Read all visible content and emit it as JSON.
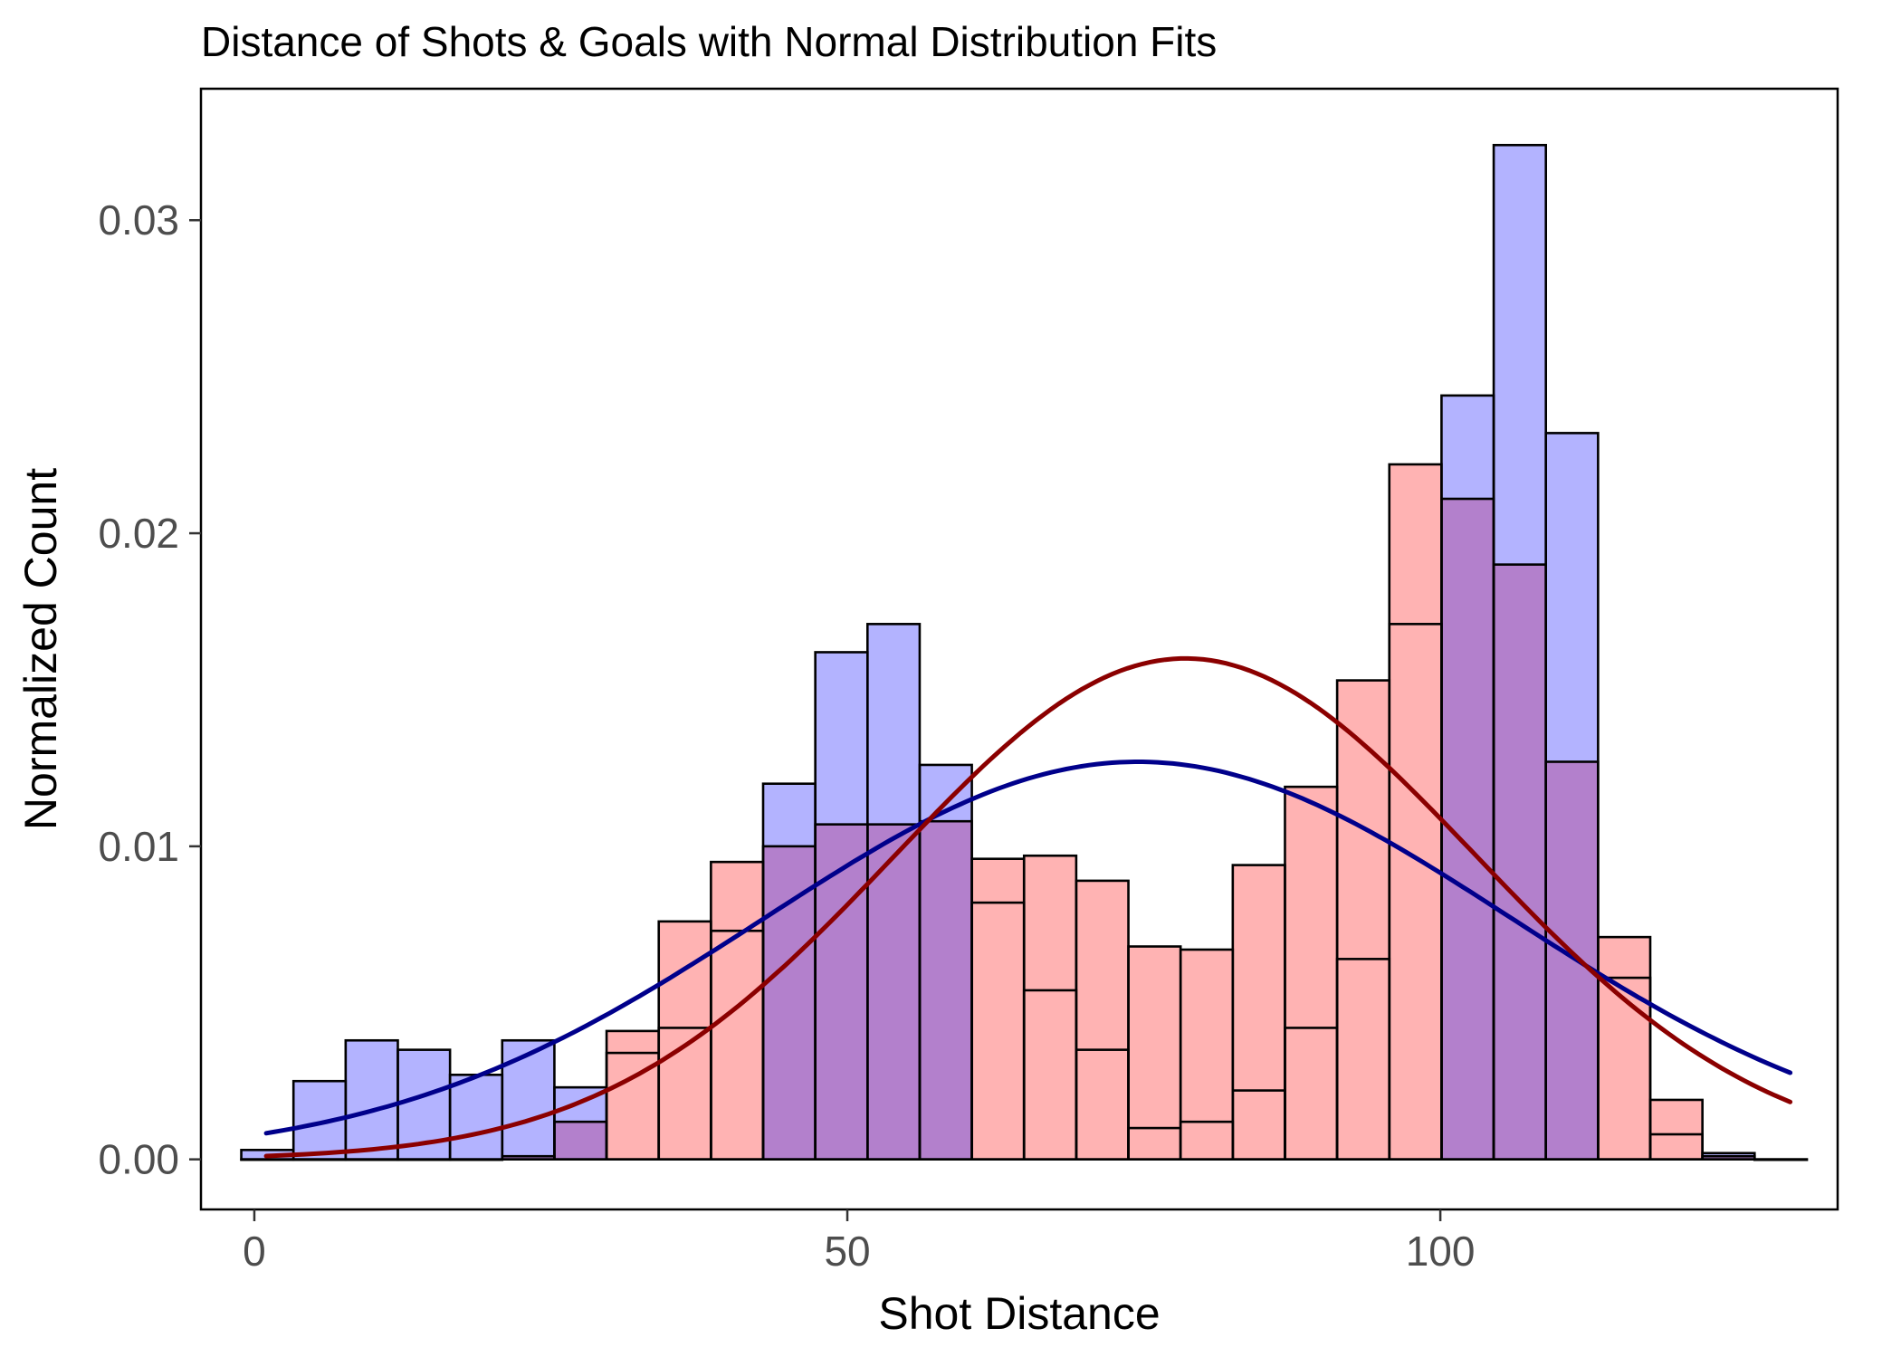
{
  "chart_data": {
    "type": "bar",
    "title": "Distance of Shots & Goals with Normal Distribution Fits",
    "xlabel": "Shot Distance",
    "ylabel": "Normalized Count",
    "xlim": [
      -4.5,
      133.5
    ],
    "ylim": [
      -0.0016,
      0.0342
    ],
    "x_ticks": [
      0,
      50,
      100
    ],
    "x_tick_labels": [
      "0",
      "50",
      "100"
    ],
    "y_ticks": [
      0.0,
      0.01,
      0.02,
      0.03
    ],
    "y_tick_labels": [
      "0.00",
      "0.01",
      "0.02",
      "0.03"
    ],
    "grid": false,
    "legend": "none",
    "bin_width": 4.4,
    "bin_start": -1.1,
    "series": [
      {
        "kind": "histogram",
        "color": "#b3b3ff",
        "values": [
          0.0003,
          0.0025,
          0.0038,
          0.0035,
          0.0027,
          0.0038,
          0.0023,
          0.0034,
          0.0042,
          0.0073,
          0.012,
          0.0162,
          0.0171,
          0.0126,
          0.0082,
          0.0054,
          0.0035,
          0.001,
          0.0012,
          0.0022,
          0.0042,
          0.0064,
          0.0171,
          0.0244,
          0.0324,
          0.0232,
          0.0058,
          0.0008,
          0.0002,
          0.0
        ]
      },
      {
        "kind": "histogram",
        "color": "#ffb3b3",
        "values": [
          0.0,
          0.0,
          0.0,
          0.0,
          0.0,
          0.0001,
          0.0012,
          0.0041,
          0.0076,
          0.0095,
          0.01,
          0.0107,
          0.0107,
          0.0108,
          0.0096,
          0.0097,
          0.0089,
          0.0068,
          0.0067,
          0.0094,
          0.0119,
          0.0153,
          0.0222,
          0.0211,
          0.019,
          0.0127,
          0.0071,
          0.0019,
          0.0001,
          0.0
        ]
      },
      {
        "kind": "normal_fit",
        "color": "#00008b",
        "mean": 74.5,
        "peak": 0.0127,
        "sd": 31.5,
        "x_range": [
          1,
          129.5
        ]
      },
      {
        "kind": "normal_fit",
        "color": "#8b0000",
        "mean": 78.5,
        "peak": 0.016,
        "sd": 24.5,
        "x_range": [
          1,
          129.5
        ]
      }
    ],
    "overlap_color": "#b380cc"
  }
}
